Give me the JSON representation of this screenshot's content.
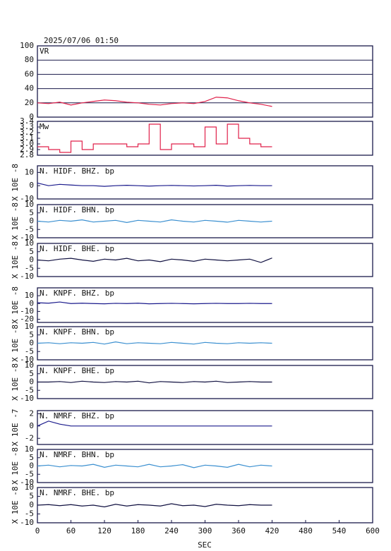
{
  "chart_data": [
    {
      "type": "line",
      "title": "2025/07/06 01:50",
      "label": "VR",
      "color": "#e0204a",
      "grid": true,
      "xlim": [
        0,
        600
      ],
      "ylim": [
        0,
        100
      ],
      "yticks": [
        0,
        20,
        40,
        60,
        80,
        100
      ],
      "x": [
        0,
        20,
        40,
        60,
        80,
        100,
        120,
        140,
        160,
        180,
        200,
        220,
        240,
        260,
        280,
        300,
        320,
        340,
        360,
        380,
        400,
        420
      ],
      "values": [
        20,
        19,
        21,
        17,
        20,
        22,
        24,
        23,
        21,
        20,
        18,
        17,
        19,
        20,
        19,
        22,
        28,
        27,
        23,
        20,
        18,
        15
      ]
    },
    {
      "type": "step",
      "label": "Mw",
      "color": "#e0204a",
      "xlim": [
        0,
        600
      ],
      "ylim": [
        2.8,
        3.4
      ],
      "yticks": [
        2.8,
        2.9,
        {
          "value": 3,
          "label": "3.0"
        },
        3.1,
        3.2,
        3.3,
        3.4
      ],
      "x": [
        0,
        20,
        40,
        60,
        80,
        100,
        120,
        140,
        160,
        180,
        200,
        220,
        240,
        260,
        280,
        300,
        320,
        340,
        360,
        380,
        400,
        420
      ],
      "values": [
        2.95,
        2.9,
        2.85,
        3.05,
        2.9,
        3.0,
        3.0,
        3.0,
        2.95,
        3.0,
        3.35,
        2.9,
        3.0,
        3.0,
        2.95,
        3.3,
        3.0,
        3.35,
        3.1,
        3.0,
        2.95,
        2.95
      ]
    },
    {
      "type": "line",
      "label": "N. HIDF. BHZ. bp",
      "ylabel": "X 10E -8",
      "color": "#1a1a8c",
      "xlim": [
        0,
        600
      ],
      "ylim": [
        -10,
        15
      ],
      "yticks": [
        10,
        0,
        -10
      ],
      "x": [
        0,
        20,
        40,
        60,
        80,
        100,
        120,
        140,
        160,
        180,
        200,
        220,
        240,
        260,
        280,
        300,
        320,
        340,
        360,
        380,
        400,
        420
      ],
      "values": [
        2,
        0,
        1,
        0.5,
        0,
        0,
        -0.5,
        0,
        0.3,
        0,
        -0.3,
        0,
        0.2,
        0,
        -0.2,
        0,
        0.3,
        -0.3,
        0,
        0.2,
        0,
        0
      ]
    },
    {
      "type": "line",
      "label": "N. HIDF. BHN. bp",
      "ylabel": "X 10E -8",
      "color": "#3a8fd0",
      "xlim": [
        0,
        600
      ],
      "ylim": [
        -10,
        10
      ],
      "yticks": [
        10,
        5,
        0,
        -5,
        -10
      ],
      "x": [
        0,
        20,
        40,
        60,
        80,
        100,
        120,
        140,
        160,
        180,
        200,
        220,
        240,
        260,
        280,
        300,
        320,
        340,
        360,
        380,
        400,
        420
      ],
      "values": [
        0,
        -0.5,
        0.5,
        0,
        0.8,
        -0.5,
        0,
        0.5,
        -0.8,
        0.5,
        0,
        -0.5,
        0.8,
        0,
        -0.5,
        0.5,
        0,
        -0.6,
        0.5,
        0,
        -0.5,
        0
      ]
    },
    {
      "type": "line",
      "label": "N. HIDF. BHE. bp",
      "ylabel": "X 10E -8",
      "color": "#101040",
      "xlim": [
        0,
        600
      ],
      "ylim": [
        -10,
        10
      ],
      "yticks": [
        10,
        5,
        0,
        -5,
        -10
      ],
      "x": [
        0,
        20,
        40,
        60,
        80,
        100,
        120,
        140,
        160,
        180,
        200,
        220,
        240,
        260,
        280,
        300,
        320,
        340,
        360,
        380,
        400,
        420
      ],
      "values": [
        0,
        -0.5,
        0.5,
        1,
        0,
        -0.8,
        0.5,
        0,
        1,
        -0.5,
        0,
        -1,
        0.5,
        0,
        -0.8,
        0.5,
        0,
        -0.5,
        0,
        0.5,
        -1.5,
        1.2
      ]
    },
    {
      "type": "line",
      "label": "N. KNPF. BHZ. bp",
      "ylabel": "X 10E -8",
      "color": "#1a1a8c",
      "xlim": [
        0,
        600
      ],
      "ylim": [
        -24,
        20
      ],
      "yticks": [
        10,
        0,
        -10,
        -20
      ],
      "x": [
        0,
        20,
        40,
        60,
        80,
        100,
        120,
        140,
        160,
        180,
        200,
        220,
        240,
        260,
        280,
        300,
        320,
        340,
        360,
        380,
        400,
        420
      ],
      "values": [
        1,
        0.5,
        2,
        0,
        0.5,
        0,
        -0.3,
        0.3,
        0,
        0.5,
        -0.3,
        0,
        0.3,
        0,
        -0.3,
        0,
        0.3,
        0,
        0,
        0.3,
        0,
        0
      ]
    },
    {
      "type": "line",
      "label": "N. KNPF. BHN. bp",
      "ylabel": "X 10E -8",
      "color": "#3a8fd0",
      "xlim": [
        0,
        600
      ],
      "ylim": [
        -10,
        10
      ],
      "yticks": [
        10,
        5,
        0,
        -5,
        -10
      ],
      "x": [
        0,
        20,
        40,
        60,
        80,
        100,
        120,
        140,
        160,
        180,
        200,
        220,
        240,
        260,
        280,
        300,
        320,
        340,
        360,
        380,
        400,
        420
      ],
      "values": [
        0,
        0.3,
        -0.3,
        0.3,
        0,
        0.5,
        -0.5,
        0.8,
        -0.3,
        0.3,
        0,
        -0.3,
        0.5,
        0,
        -0.5,
        0.5,
        0,
        -0.3,
        0.3,
        0,
        0.3,
        0
      ]
    },
    {
      "type": "line",
      "label": "N. KNPF. BHE. bp",
      "ylabel": "X 10E -8",
      "color": "#101040",
      "xlim": [
        0,
        600
      ],
      "ylim": [
        -10,
        10
      ],
      "yticks": [
        10,
        5,
        0,
        -5,
        -10
      ],
      "x": [
        0,
        20,
        40,
        60,
        80,
        100,
        120,
        140,
        160,
        180,
        200,
        220,
        240,
        260,
        280,
        300,
        320,
        340,
        360,
        380,
        400,
        420
      ],
      "values": [
        0,
        0,
        0.3,
        -0.3,
        0.5,
        0,
        -0.3,
        0.3,
        0,
        0.5,
        -0.5,
        0.3,
        0,
        -0.3,
        0.3,
        0,
        0.5,
        -0.3,
        0,
        0.3,
        0,
        0
      ]
    },
    {
      "type": "line",
      "label": "N. NMRF. BHZ. bp",
      "ylabel": "X 10E -7",
      "color": "#1a1a8c",
      "xlim": [
        0,
        600
      ],
      "ylim": [
        -3,
        2.5
      ],
      "yticks": [
        2,
        0,
        -2
      ],
      "x": [
        0,
        20,
        40,
        60,
        80,
        100,
        120,
        140,
        160,
        180,
        200,
        220,
        240,
        260,
        280,
        300,
        320,
        340,
        360,
        380,
        400,
        420
      ],
      "values": [
        0,
        0.8,
        0.3,
        0,
        0,
        0,
        0,
        0,
        0,
        0,
        0,
        0,
        0,
        0,
        0,
        0,
        0,
        0,
        0,
        0,
        0,
        0
      ]
    },
    {
      "type": "line",
      "label": "N. NMRF. BHN. bp",
      "ylabel": "X 10E -8",
      "color": "#3a8fd0",
      "xlim": [
        0,
        600
      ],
      "ylim": [
        -10,
        10
      ],
      "yticks": [
        10,
        5,
        0,
        -5,
        -10
      ],
      "x": [
        0,
        20,
        40,
        60,
        80,
        100,
        120,
        140,
        160,
        180,
        200,
        220,
        240,
        260,
        280,
        300,
        320,
        340,
        360,
        380,
        400,
        420
      ],
      "values": [
        0,
        0.5,
        -0.5,
        0.3,
        0,
        1,
        -0.8,
        0.5,
        0,
        -0.5,
        1,
        -0.5,
        0,
        0.8,
        -1,
        0.5,
        0,
        -0.8,
        1,
        -0.5,
        0.5,
        0
      ]
    },
    {
      "type": "line",
      "label": "N. NMRF. BHE. bp",
      "ylabel": "X 10E -8",
      "color": "#101040",
      "xlim": [
        0,
        600
      ],
      "ylim": [
        -10,
        10
      ],
      "yticks": [
        10,
        5,
        0,
        -5,
        -10
      ],
      "xticks": [
        0,
        60,
        120,
        180,
        240,
        300,
        360,
        420,
        480,
        540,
        600
      ],
      "xlabel": "SEC",
      "x": [
        0,
        20,
        40,
        60,
        80,
        100,
        120,
        140,
        160,
        180,
        200,
        220,
        240,
        260,
        280,
        300,
        320,
        340,
        360,
        380,
        400,
        420
      ],
      "values": [
        0,
        0.3,
        -0.3,
        0.3,
        -0.5,
        0,
        -1,
        0.5,
        -0.5,
        0.3,
        0,
        -0.5,
        0.8,
        -0.3,
        0,
        -0.8,
        0.5,
        0,
        -0.3,
        0.3,
        0,
        0
      ]
    }
  ]
}
